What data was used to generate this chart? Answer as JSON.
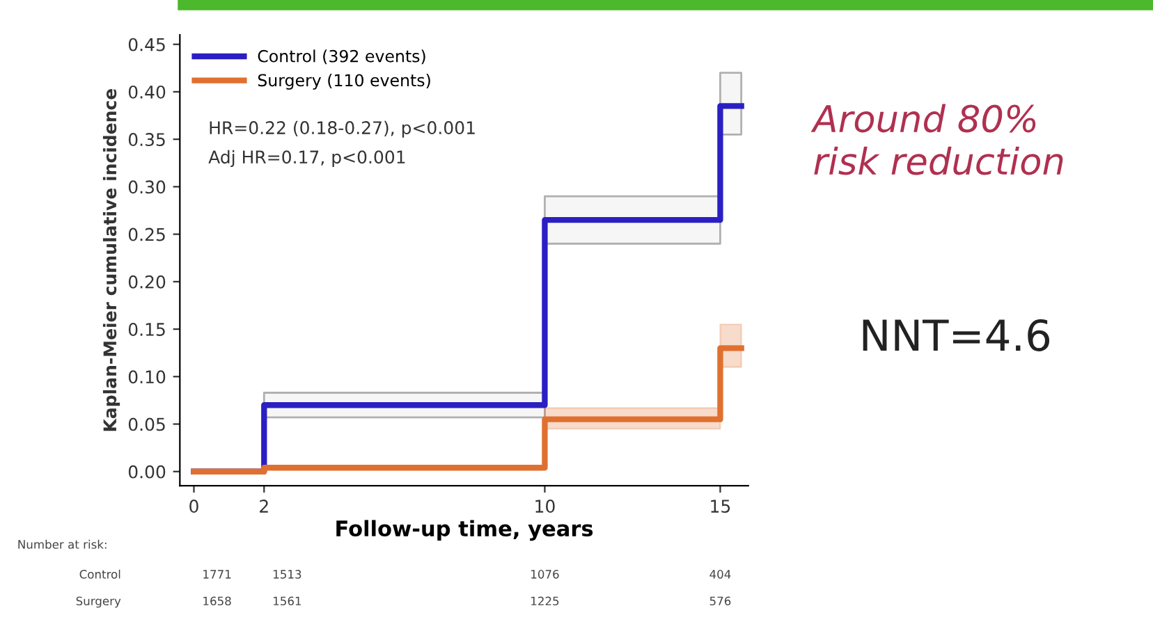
{
  "chart_data": {
    "type": "step",
    "xlabel": "Follow-up time, years",
    "ylabel": "Kaplan-Meier cumulative incidence",
    "xlim": [
      -0.4,
      15.8
    ],
    "ylim": [
      -0.015,
      0.46
    ],
    "xticks": [
      0,
      2,
      10,
      15
    ],
    "yticks": [
      {
        "value": 0,
        "label": "0.00"
      },
      {
        "value": 0.05,
        "label": "0.05"
      },
      {
        "value": 0.1,
        "label": "0.10"
      },
      {
        "value": 0.15,
        "label": "0.15"
      },
      {
        "value": 0.2,
        "label": "0.20"
      },
      {
        "value": 0.25,
        "label": "0.25"
      },
      {
        "value": 0.3,
        "label": "0.30"
      },
      {
        "value": 0.35,
        "label": "0.35"
      },
      {
        "value": 0.4,
        "label": "0.40"
      },
      {
        "value": 0.45,
        "label": "0.45"
      }
    ],
    "legend": "top left",
    "grid": false,
    "series": [
      {
        "name": "Control (392 events)",
        "color": "#2b1fc4",
        "x": [
          0,
          2,
          10,
          15,
          15.6
        ],
        "values": [
          0,
          0.07,
          0.265,
          0.385,
          0.385
        ],
        "lower": [
          0,
          0.057,
          0.24,
          0.355,
          0.355
        ],
        "upper": [
          0,
          0.083,
          0.29,
          0.42,
          0.42
        ]
      },
      {
        "name": "Surgery (110 events)",
        "color": "#e07030",
        "x": [
          0,
          2,
          10,
          15,
          15.6
        ],
        "values": [
          0,
          0.004,
          0.055,
          0.13,
          0.13
        ],
        "lower": [
          0,
          0.002,
          0.045,
          0.11,
          0.11
        ],
        "upper": [
          0,
          0.006,
          0.067,
          0.155,
          0.155
        ]
      }
    ],
    "annotations": [
      "HR=0.22 (0.18-0.27), p<0.001",
      "Adj HR=0.17, p<0.001",
      "Around 80%\nrisk reduction",
      "NNT=4.6",
      "Number at risk:",
      "Control",
      "1771",
      "1513",
      "1076",
      "404",
      "Surgery",
      "1658",
      "1561",
      "1225",
      "576"
    ]
  }
}
